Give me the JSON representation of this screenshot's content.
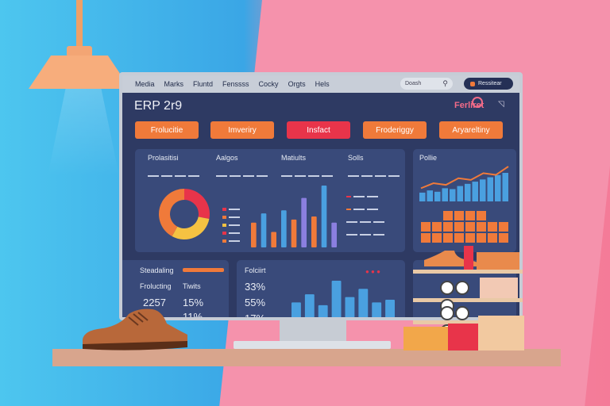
{
  "topbar": {
    "nav": [
      "Media",
      "Marks",
      "Fluntd",
      "Fenssss",
      "Cocky",
      "Orgts",
      "Hels"
    ],
    "search_placeholder": "Doash",
    "account_label": "Ressitear"
  },
  "header": {
    "title": "ERP 2r9",
    "logo_text": "Ferliret"
  },
  "tabs": [
    {
      "label": "Frolucitie",
      "color": "#f07a3a"
    },
    {
      "label": "Imveriry",
      "color": "#f07a3a"
    },
    {
      "label": "Insfact",
      "color": "#e8344a"
    },
    {
      "label": "Froderiggy",
      "color": "#f07a3a"
    },
    {
      "label": "Aryareltiny",
      "color": "#f07a3a"
    }
  ],
  "overview": {
    "headers": [
      "Prolasitisi",
      "Aalgos",
      "Matiults",
      "Solls"
    ]
  },
  "side_chart": {
    "title": "Pollie"
  },
  "bottom_left": {
    "title": "Steadaling",
    "col1_label": "Frolucting",
    "col2_label": "Tiwits",
    "value1": "2257",
    "value2": "15%",
    "value3": "11%"
  },
  "bottom_mid": {
    "title": "Folciirt",
    "stats": [
      "33%",
      "55%",
      "17%"
    ]
  },
  "chart_data": [
    {
      "type": "pie",
      "values": [
        28,
        30,
        42
      ],
      "colors": [
        "#e8344a",
        "#f5c242",
        "#f07a3a"
      ],
      "legend_colors": [
        "#e8344a",
        "#f07a3a",
        "#f5c242",
        "#e8344a",
        "#f07a3a"
      ]
    },
    {
      "type": "bar",
      "values": [
        40,
        55,
        25,
        60,
        45,
        80,
        50,
        100,
        40
      ],
      "colors": [
        "#f07a3a",
        "#4aa0e0",
        "#f07a3a",
        "#4aa0e0",
        "#f07a3a",
        "#8b7fe0",
        "#f07a3a",
        "#4aa0e0",
        "#8b7fe0"
      ]
    },
    {
      "type": "line",
      "values": [
        30,
        45,
        40,
        60,
        55,
        75,
        70,
        95
      ],
      "bars": [
        20,
        25,
        22,
        30,
        28,
        35,
        40,
        45,
        50,
        55,
        60,
        65
      ],
      "color": "#f07a3a"
    },
    {
      "type": "bar",
      "values": [
        30,
        45,
        25,
        70,
        40,
        55,
        30,
        35
      ],
      "colors": [
        "#4aa0e0",
        "#4aa0e0",
        "#4aa0e0",
        "#4aa0e0",
        "#4aa0e0",
        "#4aa0e0",
        "#4aa0e0",
        "#4aa0e0"
      ]
    }
  ]
}
